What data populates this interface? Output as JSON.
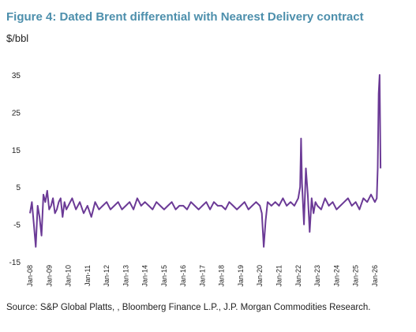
{
  "title": "Figure 4: Dated Brent differential with Nearest Delivery contract",
  "unit_label": "$/bbl",
  "source": "Source: S&P Global Platts, , Bloomberg Finance L.P., J.P. Morgan Commodities Research.",
  "chart_data": {
    "type": "line",
    "title": "Figure 4: Dated Brent differential with Nearest Delivery contract",
    "xlabel": "",
    "ylabel": "$/bbl",
    "ylim": [
      -15,
      35
    ],
    "yticks": [
      35,
      25,
      15,
      5,
      -5,
      -15
    ],
    "xtick_labels": [
      "Jan-08",
      "Jan-09",
      "Jan-10",
      "Jan-11",
      "Jan-12",
      "Jan-13",
      "Jan-14",
      "Jan-15",
      "Jan-16",
      "Jan-17",
      "Jan-18",
      "Jan-19",
      "Jan-20",
      "Jan-21",
      "Jan-22",
      "Jan-23",
      "Jan-24",
      "Jan-25",
      "Jan-26"
    ],
    "xrange": [
      2008.0,
      2026.5
    ],
    "grid": false,
    "legend": "none",
    "line_color": "#6b3a96",
    "series": [
      {
        "x": [
          2008.0,
          2008.1,
          2008.2,
          2008.3,
          2008.4,
          2008.5,
          2008.6,
          2008.7,
          2008.8,
          2008.9,
          2009.0,
          2009.1,
          2009.2,
          2009.3,
          2009.4,
          2009.5,
          2009.6,
          2009.7,
          2009.8,
          2009.9,
          2010.0,
          2010.2,
          2010.4,
          2010.6,
          2010.8,
          2011.0,
          2011.2,
          2011.4,
          2011.6,
          2011.8,
          2012.0,
          2012.2,
          2012.4,
          2012.6,
          2012.8,
          2013.0,
          2013.2,
          2013.4,
          2013.6,
          2013.8,
          2014.0,
          2014.2,
          2014.4,
          2014.6,
          2014.8,
          2015.0,
          2015.2,
          2015.4,
          2015.6,
          2015.8,
          2016.0,
          2016.2,
          2016.4,
          2016.6,
          2016.8,
          2017.0,
          2017.2,
          2017.4,
          2017.6,
          2017.8,
          2018.0,
          2018.2,
          2018.4,
          2018.6,
          2018.8,
          2019.0,
          2019.2,
          2019.4,
          2019.6,
          2019.8,
          2020.0,
          2020.1,
          2020.2,
          2020.3,
          2020.4,
          2020.6,
          2020.8,
          2021.0,
          2021.2,
          2021.4,
          2021.6,
          2021.8,
          2022.0,
          2022.1,
          2022.15,
          2022.2,
          2022.3,
          2022.4,
          2022.5,
          2022.6,
          2022.7,
          2022.8,
          2022.9,
          2023.0,
          2023.2,
          2023.4,
          2023.6,
          2023.8,
          2024.0,
          2024.2,
          2024.4,
          2024.6,
          2024.8,
          2025.0,
          2025.2,
          2025.4,
          2025.6,
          2025.8,
          2026.0,
          2026.1,
          2026.15,
          2026.2,
          2026.25,
          2026.3
        ],
        "y": [
          -2,
          1,
          -5,
          -11,
          0,
          -3,
          -8,
          3,
          1,
          4,
          -1,
          0,
          2,
          -2,
          -1,
          1,
          2,
          -3,
          1,
          -1,
          0,
          2,
          -1,
          1,
          -2,
          0,
          -3,
          1,
          -1,
          0,
          1,
          -1,
          0,
          1,
          -1,
          0,
          1,
          -1,
          2,
          0,
          1,
          0,
          -1,
          1,
          0,
          -1,
          0,
          1,
          -1,
          0,
          0,
          -1,
          1,
          0,
          -1,
          0,
          1,
          -1,
          1,
          0,
          0,
          -1,
          1,
          0,
          -1,
          0,
          1,
          -1,
          0,
          1,
          0,
          -2,
          -11,
          -4,
          1,
          0,
          1,
          0,
          2,
          0,
          1,
          0,
          2,
          5,
          18,
          6,
          -5,
          10,
          3,
          -7,
          2,
          -2,
          1,
          0,
          -1,
          2,
          0,
          1,
          -1,
          0,
          1,
          2,
          0,
          1,
          -1,
          2,
          1,
          3,
          1,
          2,
          10,
          30,
          35,
          10
        ]
      }
    ]
  }
}
